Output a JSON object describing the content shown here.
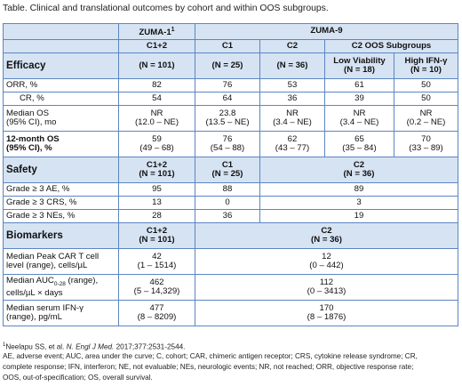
{
  "caption": "Table. Clinical and translational outcomes by cohort and within OOS subgroups.",
  "header": {
    "zuma1": "ZUMA-1",
    "zuma1_sup": "1",
    "zuma9": "ZUMA-9",
    "sub": [
      "C1+2",
      "C1",
      "C2",
      "C2 OOS Subgroups"
    ]
  },
  "efficacy": {
    "label": "Efficacy",
    "cols": [
      "(N = 101)",
      "(N = 25)",
      "(N = 36)"
    ],
    "low_viability": "Low Viability",
    "low_viability_n": "(N = 18)",
    "high_ifn": "High IFN-γ",
    "high_ifn_n": "(N = 10)",
    "rows": [
      {
        "label": "ORR, %",
        "values": [
          "82",
          "76",
          "53",
          "61",
          "50"
        ]
      },
      {
        "label": "CR, %",
        "values": [
          "54",
          "64",
          "36",
          "39",
          "50"
        ]
      },
      {
        "label1": "Median OS",
        "label2": "(95% CI), mo",
        "values": [
          "NR",
          "23.8",
          "NR",
          "NR",
          "NR"
        ],
        "ci": [
          "(12.0 – NE)",
          "(13.5 – NE)",
          "(3.4 – NE)",
          "(3.4 – NE)",
          "(0.2 – NE)"
        ]
      },
      {
        "label1": "12-month OS",
        "label2": "(95% CI), %",
        "values": [
          "59",
          "76",
          "62",
          "65",
          "70"
        ],
        "ci": [
          "(49 – 68)",
          "(54 – 88)",
          "(43 – 77)",
          "(35 – 84)",
          "(33 – 89)"
        ]
      }
    ]
  },
  "safety": {
    "label": "Safety",
    "h1": "C1+2",
    "h1n": "(N = 101)",
    "h2": "C1",
    "h2n": "(N = 25)",
    "h3": "C2",
    "h3n": "(N = 36)",
    "rows": [
      {
        "label": "Grade ≥ 3 AE, %",
        "values": [
          "95",
          "88",
          "89"
        ]
      },
      {
        "label": "Grade ≥ 3 CRS, %",
        "values": [
          "13",
          "0",
          "3"
        ]
      },
      {
        "label": "Grade ≥ 3 NEs, %",
        "values": [
          "28",
          "36",
          "19"
        ]
      }
    ]
  },
  "biomarkers": {
    "label": "Biomarkers",
    "h1": "C1+2",
    "h1n": "(N = 101)",
    "h2": "C2",
    "h2n": "(N = 36)",
    "rows": [
      {
        "label1": "Median Peak CAR T cell",
        "label2": "level (range), cells/µL",
        "v1": "42",
        "r1": "(1 – 1514)",
        "v2": "12",
        "r2": "(0 – 442)"
      },
      {
        "label1a": "Median AUC",
        "label1sub": "0-28",
        "label1b": " (range),",
        "label2": "cells/µL × days",
        "v1": "462",
        "r1": "(5 – 14,329)",
        "v2": "112",
        "r2": "(0 – 3413)"
      },
      {
        "label1": "Median serum IFN-γ",
        "label2": "(range), pg/mL",
        "v1": "477",
        "r1": "(8 – 8209)",
        "v2": "170",
        "r2": "(8 – 1876)"
      }
    ]
  },
  "footnotes": {
    "ref_sup": "1",
    "ref_a": "Neelapu SS, et al. ",
    "ref_i": "N. Engl J Med.",
    "ref_b": " 2017;377:2531-2544.",
    "line1": "AE, adverse event; AUC, area under the curve; C, cohort; CAR, chimeric antigen receptor; CRS, cytokine release syndrome; CR,",
    "line2": "complete response; IFN, interferon; NE, not evaluable; NEs, neurologic events; NR, not reached; ORR, objective response rate;",
    "line3": "OOS, out-of-specification; OS, overall survival."
  }
}
